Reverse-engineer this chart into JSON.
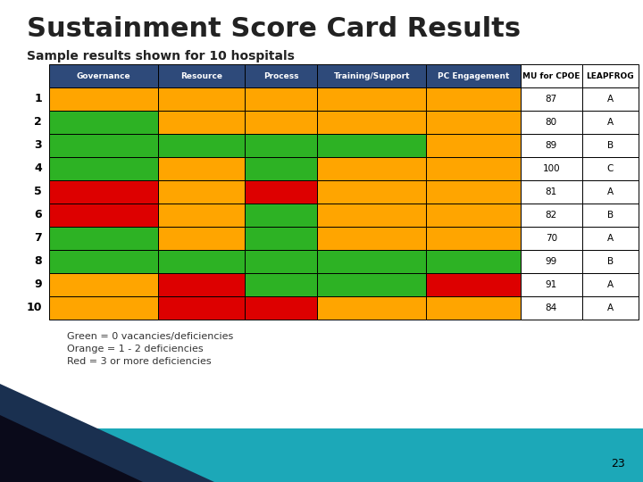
{
  "title": "Sustainment Score Card Results",
  "subtitle": "Sample results shown for 10 hospitals",
  "columns": [
    "Governance",
    "Resource",
    "Process",
    "Training/Support",
    "PC Engagement",
    "MU for CPOE",
    "LEAPFROG"
  ],
  "row_labels": [
    "1",
    "2",
    "3",
    "4",
    "5",
    "6",
    "7",
    "8",
    "9",
    "10"
  ],
  "mu_cpoe": [
    "87",
    "80",
    "89",
    "100",
    "81",
    "82",
    "70",
    "99",
    "91",
    "84"
  ],
  "leapfrog": [
    "A",
    "A",
    "B",
    "C",
    "A",
    "B",
    "A",
    "B",
    "A",
    "A"
  ],
  "cell_colors": [
    [
      "orange",
      "orange",
      "orange",
      "orange",
      "orange"
    ],
    [
      "green",
      "orange",
      "orange",
      "orange",
      "orange"
    ],
    [
      "green",
      "green",
      "green",
      "green",
      "orange"
    ],
    [
      "green",
      "orange",
      "green",
      "orange",
      "orange"
    ],
    [
      "red",
      "orange",
      "red",
      "orange",
      "orange"
    ],
    [
      "red",
      "orange",
      "green",
      "orange",
      "orange"
    ],
    [
      "green",
      "orange",
      "green",
      "orange",
      "orange"
    ],
    [
      "green",
      "green",
      "green",
      "green",
      "green"
    ],
    [
      "orange",
      "red",
      "green",
      "green",
      "red"
    ],
    [
      "orange",
      "red",
      "red",
      "orange",
      "orange"
    ]
  ],
  "orange": "#FFA500",
  "green": "#2DB224",
  "red": "#DD0000",
  "header_bg": "#2E4A7A",
  "header_fg": "#FFFFFF",
  "bg_color": "#FFFFFF",
  "legend_text": [
    "Green = 0 vacancies/deficiencies",
    "Orange = 1 - 2 deficiencies",
    "Red = 3 or more deficiencies"
  ],
  "title_color": "#222222",
  "subtitle_color": "#222222",
  "teal_strip": "#1CA8B8",
  "dark_blue_tri": "#1A3050"
}
